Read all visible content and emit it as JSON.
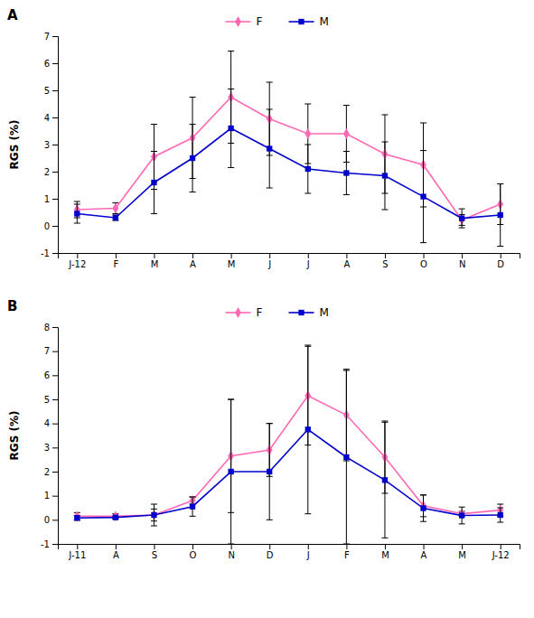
{
  "chart_data": [
    {
      "type": "line",
      "title": "A",
      "y_label": "RGS (%)",
      "categories": [
        "J-12",
        "F",
        "M",
        "A",
        "M",
        "J",
        "J",
        "A",
        "S",
        "O",
        "N",
        "D"
      ],
      "series": [
        {
          "name": "F",
          "color": "#FF69B4",
          "marker": "diamond",
          "values": [
            0.6,
            0.65,
            2.55,
            3.25,
            4.75,
            3.95,
            3.4,
            3.4,
            2.65,
            2.25,
            0.22,
            0.8
          ],
          "errors": [
            0.3,
            0.2,
            1.2,
            1.5,
            1.7,
            1.35,
            1.1,
            1.05,
            1.45,
            1.55,
            0.2,
            0.75
          ]
        },
        {
          "name": "M",
          "color": "#0000CD",
          "marker": "square",
          "values": [
            0.45,
            0.3,
            1.6,
            2.5,
            3.6,
            2.85,
            2.1,
            1.95,
            1.85,
            1.08,
            0.28,
            0.4
          ],
          "errors": [
            0.35,
            0.1,
            1.15,
            1.25,
            1.45,
            1.45,
            0.9,
            0.8,
            1.25,
            1.7,
            0.35,
            1.15
          ]
        }
      ],
      "ylim": [
        -1,
        7
      ],
      "yticks": [
        -1,
        0,
        1,
        2,
        3,
        4,
        5,
        6,
        7
      ],
      "grid": false,
      "legend": "upper center"
    },
    {
      "type": "line",
      "title": "B",
      "y_label": "RGS (%)",
      "categories": [
        "J-11",
        "A",
        "S",
        "O",
        "N",
        "D",
        "J",
        "F",
        "M",
        "A",
        "M",
        "J-12"
      ],
      "series": [
        {
          "name": "F",
          "color": "#FF69B4",
          "marker": "diamond",
          "values": [
            0.15,
            0.15,
            0.2,
            0.8,
            2.65,
            2.9,
            5.15,
            4.35,
            2.6,
            0.58,
            0.25,
            0.4
          ],
          "errors": [
            0.15,
            0.1,
            0.45,
            0.15,
            2.35,
            1.1,
            2.05,
            1.9,
            1.5,
            0.45,
            0.1,
            0.25
          ]
        },
        {
          "name": "M",
          "color": "#0000CD",
          "marker": "square",
          "values": [
            0.08,
            0.1,
            0.2,
            0.55,
            2.0,
            2.0,
            3.75,
            2.6,
            1.65,
            0.48,
            0.18,
            0.2
          ],
          "errors": [
            0.1,
            0.05,
            0.25,
            0.4,
            3.0,
            2.0,
            3.5,
            3.6,
            2.4,
            0.55,
            0.35,
            0.3
          ]
        }
      ],
      "ylim": [
        -1,
        8
      ],
      "yticks": [
        -1,
        0,
        1,
        2,
        3,
        4,
        5,
        6,
        7,
        8
      ],
      "grid": false,
      "legend": "upper center"
    }
  ]
}
